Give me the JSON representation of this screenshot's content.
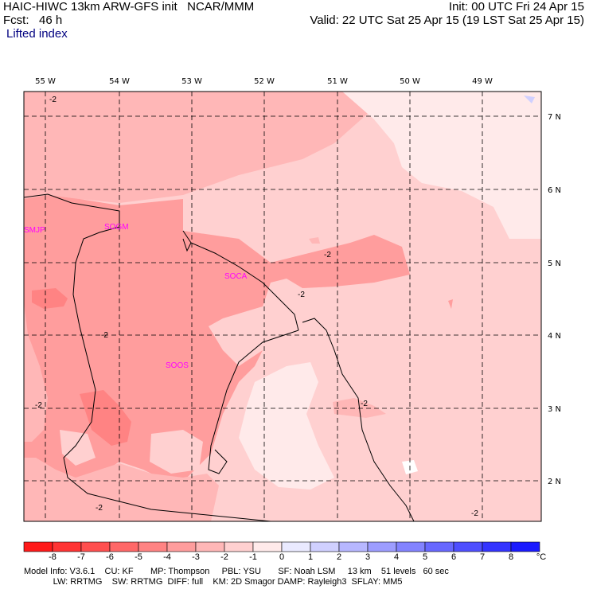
{
  "header": {
    "line1_left": "HAIC-HIWC 13km ARW-GFS init   NCAR/MMM",
    "line1_right": "Init: 00 UTC Fri 24 Apr 15",
    "line2_left": "Fcst:   46 h",
    "line2_right": "Valid: 22 UTC Sat 25 Apr 15 (19 LST Sat 25 Apr 15)",
    "field": "Lifted index"
  },
  "lon_labels": [
    "55 W",
    "54 W",
    "53 W",
    "52 W",
    "51 W",
    "50 W",
    "49 W"
  ],
  "lat_labels": [
    "7 N",
    "6 N",
    "5 N",
    "4 N",
    "3 N",
    "2 N"
  ],
  "stations": [
    "SMJP",
    "SOGM",
    "SOCA",
    "SOOS"
  ],
  "contour_labels": [
    "-2",
    "-2",
    "-2",
    "-2",
    "-2",
    "-2",
    "-2",
    "-2"
  ],
  "colorbar": {
    "labels": [
      "-8",
      "-7",
      "-6",
      "-5",
      "-4",
      "-3",
      "-2",
      "-1",
      "0",
      "1",
      "2",
      "3",
      "4",
      "5",
      "6",
      "7",
      "8"
    ],
    "unit": "°C",
    "colors": [
      "#ff1a1a",
      "#ff3434",
      "#ff4f4f",
      "#ff6868",
      "#ff8383",
      "#ff9d9d",
      "#ffb7b7",
      "#ffd0d0",
      "#ffeaea",
      "#eaeaff",
      "#d0d0ff",
      "#b7b7ff",
      "#9d9dff",
      "#8383ff",
      "#6868ff",
      "#4f4fff",
      "#3434ff",
      "#1a1aff"
    ]
  },
  "footer": {
    "line1": "Model Info: V3.6.1    CU: KF       MP: Thompson     PBL: YSU       SF: Noah LSM     13 km    51 levels   60 sec",
    "line2": "            LW: RRTMG    SW: RRTMG  DIFF: full    KM: 2D Smagor DAMP: Rayleigh3  SFLAY: MM5"
  }
}
